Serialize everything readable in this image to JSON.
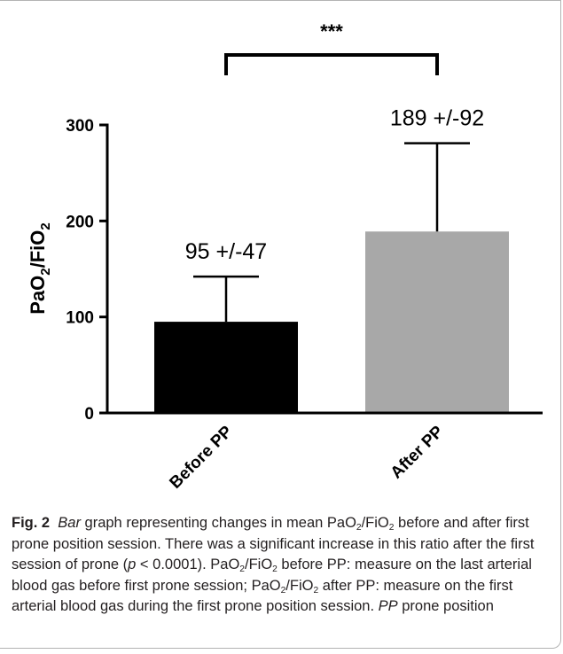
{
  "chart_data": {
    "type": "bar",
    "categories": [
      "Before PP",
      "After PP"
    ],
    "values": [
      95,
      189
    ],
    "error": [
      47,
      92
    ],
    "bar_labels": [
      "95 +/-47",
      "189 +/-92"
    ],
    "colors": [
      "#000000",
      "#a8a8a8"
    ],
    "ylim": [
      0,
      300
    ],
    "yticks": [
      "0",
      "100",
      "200",
      "300"
    ],
    "ylabel": {
      "main": "PaO",
      "sub1": "2",
      "mid": "/FiO",
      "sub2": "2"
    },
    "significance": "***",
    "grid": false,
    "legend": "none"
  },
  "caption": {
    "label": "Fig. 2",
    "seg1": "Bar",
    "seg2": " graph representing changes in mean PaO",
    "sub2": "2",
    "seg3": "/FiO",
    "sub3": "2",
    "seg4": " before and after first prone position session. There was a significant increase in this ratio after the first session of prone (",
    "seg5": "p",
    "seg6": " < 0.0001). PaO",
    "sub6": "2",
    "seg7": "/FiO",
    "sub7": "2",
    "seg8": " before PP: measure on the last arterial blood gas before first prone session; PaO",
    "sub8": "2",
    "seg9": "/FiO",
    "sub9": "2",
    "seg10": " after PP: measure on the first arterial blood gas during the first prone position session. ",
    "seg11": "PP",
    "seg12": " prone position"
  }
}
